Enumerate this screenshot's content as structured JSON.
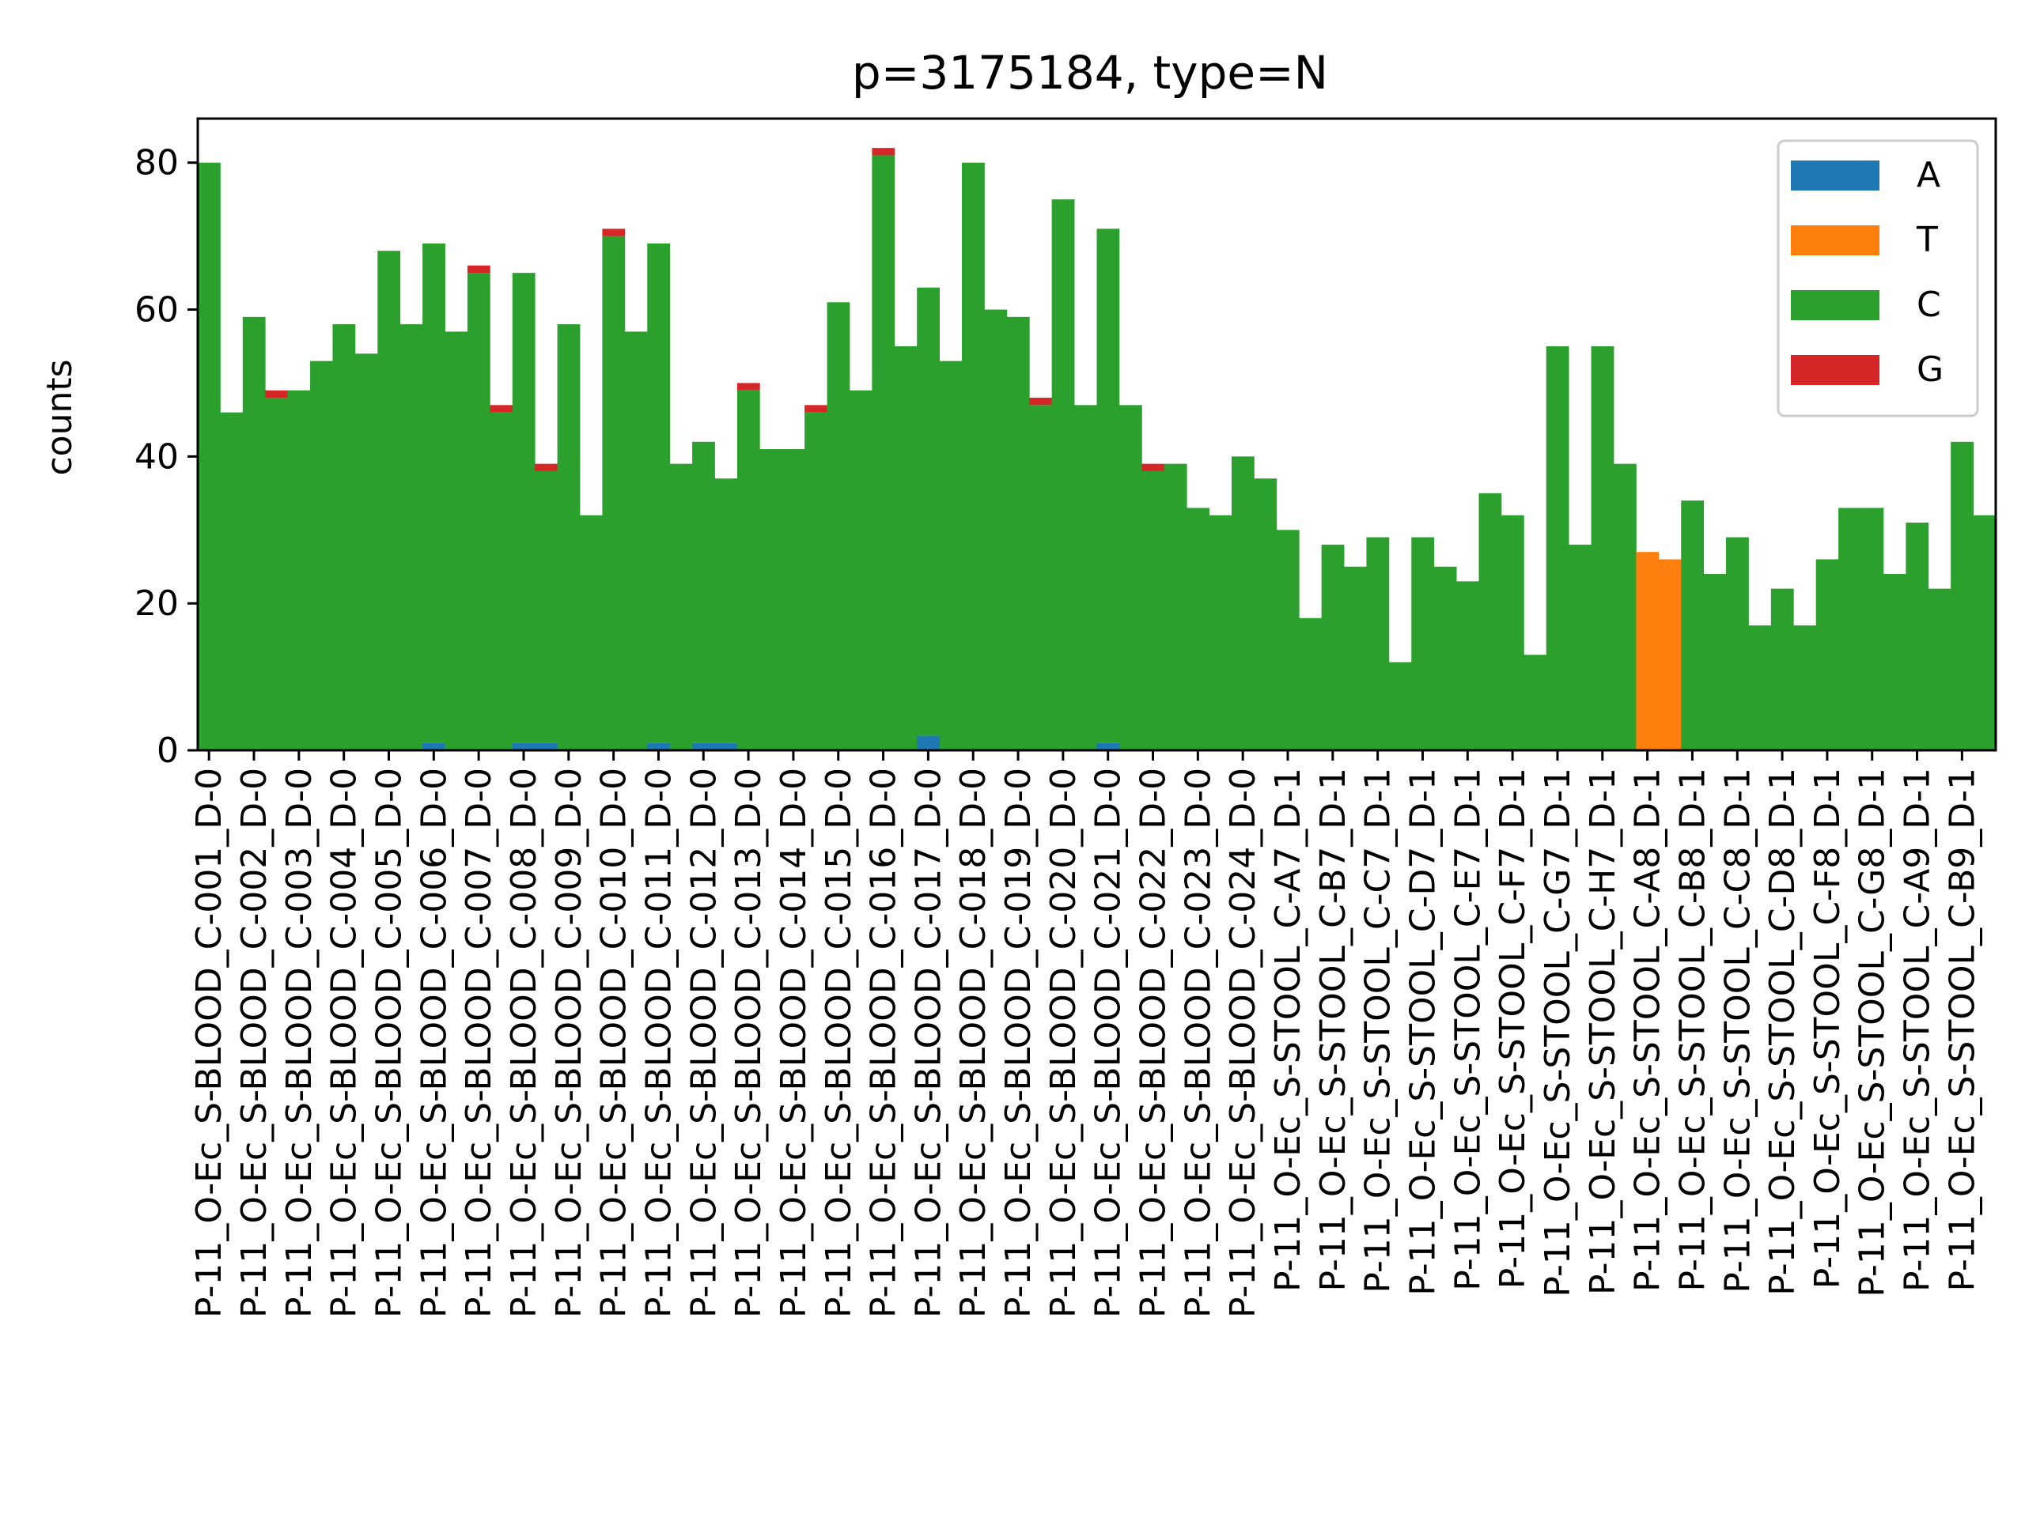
{
  "chart_data": {
    "type": "bar",
    "stacked": true,
    "title": "p=3175184, type=N",
    "xlabel": "",
    "ylabel": "counts",
    "ylim": [
      0,
      86
    ],
    "yticks": [
      0,
      20,
      40,
      60,
      80
    ],
    "grid": false,
    "legend_position": "top-right",
    "categories": [
      "P-11_O-Ec_S-BLOOD_C-001_D-0",
      "P-11_O-Ec_S-BLOOD_C-002_D-0",
      "P-11_O-Ec_S-BLOOD_C-003_D-0",
      "P-11_O-Ec_S-BLOOD_C-004_D-0",
      "P-11_O-Ec_S-BLOOD_C-005_D-0",
      "P-11_O-Ec_S-BLOOD_C-006_D-0",
      "P-11_O-Ec_S-BLOOD_C-007_D-0",
      "P-11_O-Ec_S-BLOOD_C-008_D-0",
      "P-11_O-Ec_S-BLOOD_C-009_D-0",
      "P-11_O-Ec_S-BLOOD_C-010_D-0",
      "P-11_O-Ec_S-BLOOD_C-011_D-0",
      "P-11_O-Ec_S-BLOOD_C-012_D-0",
      "P-11_O-Ec_S-BLOOD_C-013_D-0",
      "P-11_O-Ec_S-BLOOD_C-014_D-0",
      "P-11_O-Ec_S-BLOOD_C-015_D-0",
      "P-11_O-Ec_S-BLOOD_C-016_D-0",
      "P-11_O-Ec_S-BLOOD_C-017_D-0",
      "P-11_O-Ec_S-BLOOD_C-018_D-0",
      "P-11_O-Ec_S-BLOOD_C-019_D-0",
      "P-11_O-Ec_S-BLOOD_C-020_D-0",
      "P-11_O-Ec_S-BLOOD_C-021_D-0",
      "P-11_O-Ec_S-BLOOD_C-022_D-0",
      "P-11_O-Ec_S-BLOOD_C-023_D-0",
      "P-11_O-Ec_S-BLOOD_C-024_D-0",
      "P-11_O-Ec_S-STOOL_C-A7_D-1",
      "P-11_O-Ec_S-STOOL_C-B7_D-1",
      "P-11_O-Ec_S-STOOL_C-C7_D-1",
      "P-11_O-Ec_S-STOOL_C-D7_D-1",
      "P-11_O-Ec_S-STOOL_C-E7_D-1",
      "P-11_O-Ec_S-STOOL_C-F7_D-1",
      "P-11_O-Ec_S-STOOL_C-G7_D-1",
      "P-11_O-Ec_S-STOOL_C-H7_D-1",
      "P-11_O-Ec_S-STOOL_C-A8_D-1",
      "P-11_O-Ec_S-STOOL_C-B8_D-1",
      "P-11_O-Ec_S-STOOL_C-C8_D-1",
      "P-11_O-Ec_S-STOOL_C-D8_D-1",
      "P-11_O-Ec_S-STOOL_C-F8_D-1",
      "P-11_O-Ec_S-STOOL_C-G8_D-1",
      "P-11_O-Ec_S-STOOL_C-A9_D-1",
      "P-11_O-Ec_S-STOOL_C-B9_D-1"
    ],
    "bars_per_category": 2,
    "series": [
      {
        "name": "A",
        "color": "#1f77b4",
        "values": [
          [
            0,
            0
          ],
          [
            0,
            0
          ],
          [
            0,
            0
          ],
          [
            0,
            0
          ],
          [
            0,
            0
          ],
          [
            1,
            0
          ],
          [
            0,
            0
          ],
          [
            1,
            1
          ],
          [
            0,
            0
          ],
          [
            0,
            0
          ],
          [
            1,
            0
          ],
          [
            1,
            1
          ],
          [
            0,
            0
          ],
          [
            0,
            0
          ],
          [
            0,
            0
          ],
          [
            0,
            0
          ],
          [
            2,
            0
          ],
          [
            0,
            0
          ],
          [
            0,
            0
          ],
          [
            0,
            0
          ],
          [
            1,
            0
          ],
          [
            0,
            0
          ],
          [
            0,
            0
          ],
          [
            0,
            0
          ],
          [
            0,
            0
          ],
          [
            0,
            0
          ],
          [
            0,
            0
          ],
          [
            0,
            0
          ],
          [
            0,
            0
          ],
          [
            0,
            0
          ],
          [
            0,
            0
          ],
          [
            0,
            0
          ],
          [
            0,
            0
          ],
          [
            0,
            0
          ],
          [
            0,
            0
          ],
          [
            0,
            0
          ],
          [
            0,
            0
          ],
          [
            0,
            0
          ],
          [
            0,
            0
          ],
          [
            0,
            0
          ]
        ]
      },
      {
        "name": "T",
        "color": "#ff7f0e",
        "values": [
          [
            0,
            0
          ],
          [
            0,
            0
          ],
          [
            0,
            0
          ],
          [
            0,
            0
          ],
          [
            0,
            0
          ],
          [
            0,
            0
          ],
          [
            0,
            0
          ],
          [
            0,
            0
          ],
          [
            0,
            0
          ],
          [
            0,
            0
          ],
          [
            0,
            0
          ],
          [
            0,
            0
          ],
          [
            0,
            0
          ],
          [
            0,
            0
          ],
          [
            0,
            0
          ],
          [
            0,
            0
          ],
          [
            0,
            0
          ],
          [
            0,
            0
          ],
          [
            0,
            0
          ],
          [
            0,
            0
          ],
          [
            0,
            0
          ],
          [
            0,
            0
          ],
          [
            0,
            0
          ],
          [
            0,
            0
          ],
          [
            0,
            0
          ],
          [
            0,
            0
          ],
          [
            0,
            0
          ],
          [
            0,
            0
          ],
          [
            0,
            0
          ],
          [
            0,
            0
          ],
          [
            0,
            0
          ],
          [
            0,
            0
          ],
          [
            27,
            26
          ],
          [
            0,
            0
          ],
          [
            0,
            0
          ],
          [
            0,
            0
          ],
          [
            0,
            0
          ],
          [
            0,
            0
          ],
          [
            0,
            0
          ],
          [
            0,
            0
          ]
        ]
      },
      {
        "name": "C",
        "color": "#2ca02c",
        "values": [
          [
            80,
            46
          ],
          [
            59,
            48
          ],
          [
            49,
            53
          ],
          [
            58,
            54
          ],
          [
            68,
            58
          ],
          [
            68,
            57
          ],
          [
            65,
            46
          ],
          [
            64,
            37
          ],
          [
            58,
            32
          ],
          [
            70,
            57
          ],
          [
            68,
            39
          ],
          [
            41,
            36
          ],
          [
            49,
            41
          ],
          [
            41,
            46
          ],
          [
            61,
            49
          ],
          [
            81,
            55
          ],
          [
            61,
            53
          ],
          [
            80,
            60
          ],
          [
            59,
            47
          ],
          [
            75,
            47
          ],
          [
            70,
            47
          ],
          [
            38,
            39
          ],
          [
            33,
            32
          ],
          [
            40,
            37
          ],
          [
            30,
            18
          ],
          [
            28,
            25
          ],
          [
            29,
            12
          ],
          [
            29,
            25
          ],
          [
            23,
            35
          ],
          [
            32,
            13
          ],
          [
            55,
            28
          ],
          [
            55,
            39
          ],
          [
            0,
            0
          ],
          [
            34,
            24
          ],
          [
            29,
            17
          ],
          [
            22,
            17
          ],
          [
            26,
            33
          ],
          [
            33,
            24
          ],
          [
            31,
            22
          ],
          [
            42,
            32
          ]
        ]
      },
      {
        "name": "G",
        "color": "#d62728",
        "values": [
          [
            0,
            0
          ],
          [
            0,
            1
          ],
          [
            0,
            0
          ],
          [
            0,
            0
          ],
          [
            0,
            0
          ],
          [
            0,
            0
          ],
          [
            1,
            1
          ],
          [
            0,
            1
          ],
          [
            0,
            0
          ],
          [
            1,
            0
          ],
          [
            0,
            0
          ],
          [
            0,
            0
          ],
          [
            1,
            0
          ],
          [
            0,
            1
          ],
          [
            0,
            0
          ],
          [
            1,
            0
          ],
          [
            0,
            0
          ],
          [
            0,
            0
          ],
          [
            0,
            1
          ],
          [
            0,
            0
          ],
          [
            0,
            0
          ],
          [
            1,
            0
          ],
          [
            0,
            0
          ],
          [
            0,
            0
          ],
          [
            0,
            0
          ],
          [
            0,
            0
          ],
          [
            0,
            0
          ],
          [
            0,
            0
          ],
          [
            0,
            0
          ],
          [
            0,
            0
          ],
          [
            0,
            0
          ],
          [
            0,
            0
          ],
          [
            0,
            0
          ],
          [
            0,
            0
          ],
          [
            0,
            0
          ],
          [
            0,
            0
          ],
          [
            0,
            0
          ],
          [
            0,
            0
          ],
          [
            0,
            0
          ],
          [
            0,
            0
          ]
        ]
      }
    ]
  }
}
